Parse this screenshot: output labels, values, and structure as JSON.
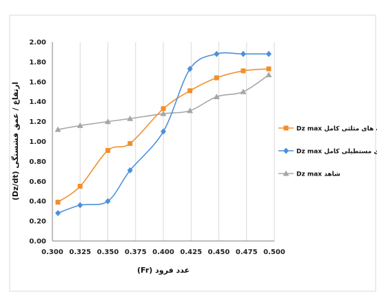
{
  "chart_data": {
    "type": "line",
    "xlabel": "عدد فرود (Fr)",
    "ylabel": "ارتفاع / عمق فشستگی (Dz/dt)",
    "xlim": [
      0.3,
      0.5
    ],
    "ylim": [
      0,
      2
    ],
    "x_ticks": [
      "0.300",
      "0.325",
      "0.350",
      "0.375",
      "0.400",
      "0.425",
      "0.450",
      "0.475",
      "0.500"
    ],
    "y_ticks": [
      "0.00",
      "0.20",
      "0.40",
      "0.60",
      "0.80",
      "1.00",
      "1.20",
      "1.40",
      "1.60",
      "1.80",
      "2.00"
    ],
    "grid": "vertical",
    "legend_position": "right",
    "series": [
      {
        "name": "Dz max با دندانه های مثلثی کامل",
        "color": "#f28e2b",
        "marker": "square",
        "x": [
          0.305,
          0.325,
          0.35,
          0.37,
          0.4,
          0.424,
          0.448,
          0.472,
          0.495
        ],
        "y": [
          0.39,
          0.55,
          0.91,
          0.98,
          1.33,
          1.51,
          1.64,
          1.71,
          1.73
        ]
      },
      {
        "name": "Dz max با دندانه های مستطیلی کامل",
        "color": "#4a90d9",
        "marker": "diamond",
        "x": [
          0.305,
          0.325,
          0.35,
          0.37,
          0.4,
          0.424,
          0.448,
          0.472,
          0.495
        ],
        "y": [
          0.28,
          0.36,
          0.4,
          0.71,
          1.1,
          1.73,
          1.88,
          1.88,
          1.88
        ]
      },
      {
        "name": "Dz max شاهد",
        "color": "#a6a6a6",
        "marker": "triangle",
        "x": [
          0.305,
          0.325,
          0.35,
          0.37,
          0.4,
          0.424,
          0.448,
          0.472,
          0.495
        ],
        "y": [
          1.12,
          1.16,
          1.2,
          1.23,
          1.28,
          1.31,
          1.45,
          1.5,
          1.67
        ]
      }
    ]
  }
}
